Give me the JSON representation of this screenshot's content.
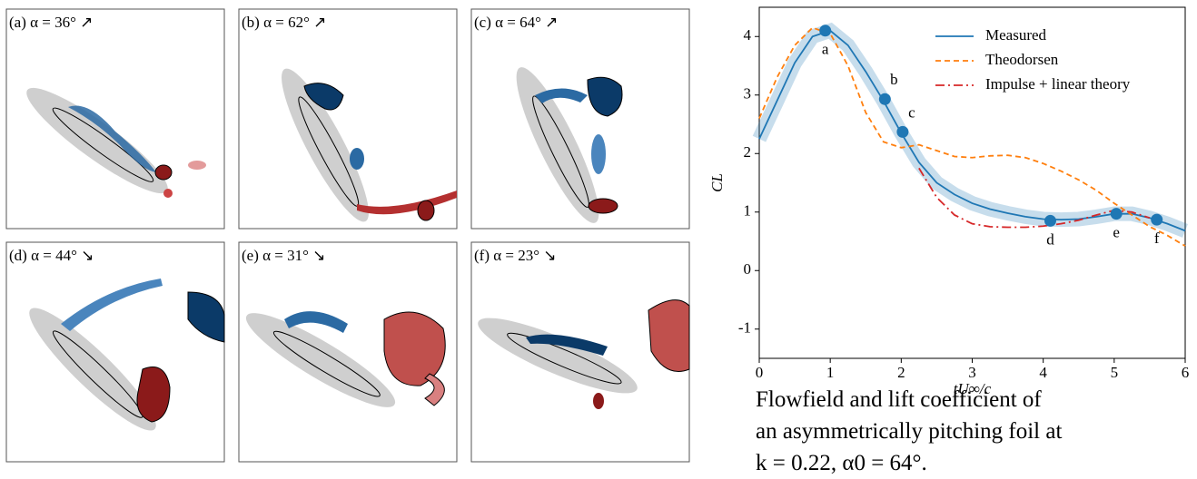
{
  "panels": [
    "(a) α = 36° ↗",
    "(b) α = 62° ↗",
    "(c) α = 64° ↗",
    "(d) α = 44° ↘",
    "(e) α = 31° ↘",
    "(f) α = 23° ↘"
  ],
  "caption": [
    "Flowfield and lift coefficient of",
    "an asymmetrically pitching foil at",
    "k = 0.22,  α0 = 64°."
  ],
  "chart_data": {
    "type": "line",
    "x_label": "tU∞/c",
    "y_label": "CL",
    "x": [
      0,
      0.25,
      0.5,
      0.75,
      1,
      1.25,
      1.5,
      1.75,
      2,
      2.25,
      2.5,
      2.75,
      3,
      3.25,
      3.5,
      3.75,
      4,
      4.25,
      4.5,
      4.75,
      5,
      5.25,
      5.5,
      5.75,
      6
    ],
    "series": [
      {
        "name": "Measured",
        "color": "#1f77b4",
        "style": "solid",
        "values": [
          2.25,
          2.9,
          3.55,
          4.0,
          4.1,
          3.85,
          3.4,
          2.9,
          2.35,
          1.85,
          1.5,
          1.3,
          1.15,
          1.05,
          0.98,
          0.92,
          0.88,
          0.87,
          0.88,
          0.92,
          0.97,
          0.97,
          0.9,
          0.8,
          0.68
        ]
      },
      {
        "name": "Theodorsen",
        "color": "#ff7f0e",
        "style": "dashed",
        "values": [
          2.6,
          3.3,
          3.85,
          4.15,
          4.05,
          3.5,
          2.7,
          2.2,
          2.1,
          2.15,
          2.05,
          1.95,
          1.93,
          1.96,
          1.97,
          1.93,
          1.83,
          1.7,
          1.55,
          1.37,
          1.15,
          0.95,
          0.75,
          0.6,
          0.42
        ]
      },
      {
        "name": "Impulse + linear theory",
        "color": "#d62728",
        "style": "dashdot",
        "values": [
          null,
          null,
          null,
          null,
          null,
          null,
          null,
          null,
          null,
          1.75,
          1.25,
          0.95,
          0.8,
          0.75,
          0.74,
          0.74,
          0.76,
          0.8,
          0.86,
          0.95,
          1.03,
          1.0,
          0.9,
          null,
          null
        ]
      }
    ],
    "markers": {
      "color": "#1f77b4",
      "x": [
        0.93,
        1.77,
        2.02,
        4.1,
        5.03,
        5.6
      ],
      "values": [
        4.1,
        2.93,
        2.37,
        0.85,
        0.97,
        0.87
      ],
      "labels": [
        "a",
        "b",
        "c",
        "d",
        "e",
        "f"
      ]
    },
    "xlim": [
      0,
      6
    ],
    "xticks": [
      0,
      1,
      2,
      3,
      4,
      5,
      6
    ],
    "ylim": [
      -1.5,
      4.5
    ],
    "yticks": [
      -1,
      0,
      1,
      2,
      3,
      4
    ],
    "legend": "upper right"
  }
}
